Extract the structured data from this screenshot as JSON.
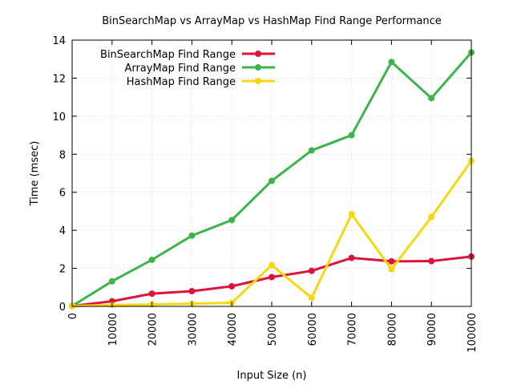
{
  "chart_data": {
    "type": "line",
    "title": "BinSearchMap vs ArrayMap vs HashMap Find Range Performance",
    "xlabel": "Input Size (n)",
    "ylabel": "Time (msec)",
    "xlim": [
      0,
      100000
    ],
    "ylim": [
      0,
      14
    ],
    "xticks": [
      "0",
      "10000",
      "20000",
      "30000",
      "40000",
      "50000",
      "60000",
      "70000",
      "80000",
      "90000",
      "100000"
    ],
    "yticks": [
      "0",
      "2",
      "4",
      "6",
      "8",
      "10",
      "12",
      "14"
    ],
    "grid": true,
    "legend_position": "top-left",
    "x": [
      0,
      10000,
      20000,
      30000,
      40000,
      50000,
      60000,
      70000,
      80000,
      90000,
      100000
    ],
    "series": [
      {
        "name": "BinSearchMap Find Range",
        "color": "#dc143c",
        "values": [
          0.02,
          0.27,
          0.67,
          0.8,
          1.06,
          1.54,
          1.87,
          2.55,
          2.37,
          2.38,
          2.62
        ]
      },
      {
        "name": "ArrayMap Find Range",
        "color": "#3cb44b",
        "values": [
          0.02,
          1.32,
          2.45,
          3.72,
          4.54,
          6.6,
          8.2,
          9.0,
          12.85,
          10.95,
          13.35
        ]
      },
      {
        "name": "HashMap Find Range",
        "color": "#f5d80f",
        "values": [
          0.02,
          0.07,
          0.1,
          0.14,
          0.19,
          2.17,
          0.45,
          4.85,
          1.95,
          4.7,
          7.65
        ]
      }
    ]
  }
}
